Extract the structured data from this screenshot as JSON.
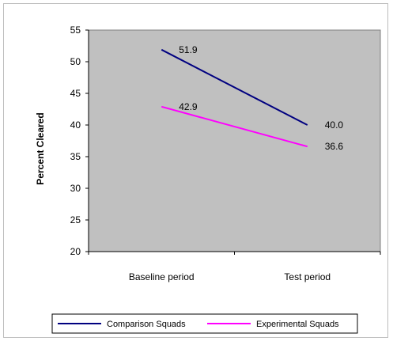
{
  "chart_data": {
    "type": "line",
    "title": "",
    "xlabel": "",
    "ylabel": "Percent Cleared",
    "ylim": [
      20,
      55
    ],
    "yticks": [
      20,
      25,
      30,
      35,
      40,
      45,
      50,
      55
    ],
    "categories": [
      "Baseline period",
      "Test period"
    ],
    "series": [
      {
        "name": "Comparison Squads",
        "values": [
          51.9,
          40.0
        ],
        "labels": [
          "51.9",
          "40.0"
        ],
        "color": "#000080"
      },
      {
        "name": "Experimental Squads",
        "values": [
          42.9,
          36.6
        ],
        "labels": [
          "42.9",
          "36.6"
        ],
        "color": "#ff00ff"
      }
    ],
    "plot_background": "#c0c0c0",
    "grid": false,
    "legend_position": "bottom"
  }
}
